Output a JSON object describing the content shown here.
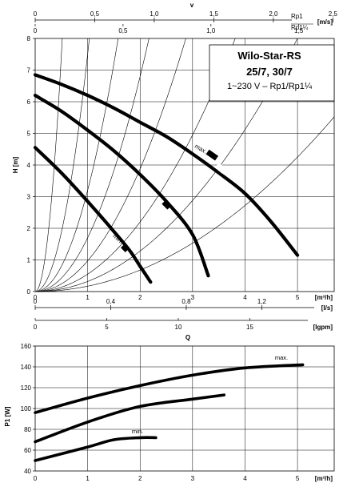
{
  "chart_data": [
    {
      "type": "line",
      "title": "Wilo-Star-RS",
      "subtitle": "25/7, 30/7",
      "note": "1~230 V – Rp1/Rp1¼",
      "ylabel": "H [m]",
      "xlabel": "Q",
      "ylim": [
        0,
        8
      ],
      "xlim": [
        0,
        5.7
      ],
      "grid": true,
      "y_ticks": [
        "0",
        "1",
        "2",
        "3",
        "4",
        "5",
        "6",
        "7",
        "8"
      ],
      "x_axis_m3h": {
        "ticks": [
          "0",
          "1",
          "2",
          "3",
          "4",
          "5"
        ],
        "unit": "[m³/h]"
      },
      "x_axis_ls": {
        "ticks": [
          "0",
          "0,4",
          "0,8",
          "1,2"
        ],
        "values": [
          0,
          0.4,
          0.8,
          1.2
        ],
        "unit": "[l/s]"
      },
      "x_axis_igpm": {
        "ticks": [
          "0",
          "5",
          "10",
          "15"
        ],
        "values": [
          0,
          5,
          10,
          15
        ],
        "unit": "[Igpm]"
      },
      "velocity_label": "v",
      "v_axis_rp1": {
        "ticks": [
          "0",
          "0,5",
          "1,0",
          "1,5",
          "2,0",
          "2,5"
        ],
        "values": [
          0,
          0.5,
          1.0,
          1.5,
          2.0,
          2.5
        ],
        "unit_label": "Rp1",
        "unit": "[m/s]"
      },
      "v_axis_rp114": {
        "ticks": [
          "0",
          "0,5",
          "1,0",
          "1,5"
        ],
        "values": [
          0,
          0.5,
          1.0,
          1.5
        ],
        "unit_label": "Rp1¼"
      },
      "system_curves_k": [
        30,
        7.5,
        3.2,
        1.7,
        0.97,
        0.55,
        0.32,
        0.17
      ],
      "series": [
        {
          "name": "max.",
          "x": [
            0,
            0.5,
            1,
            1.5,
            2,
            2.5,
            3,
            3.5,
            4,
            4.5,
            5
          ],
          "y": [
            6.85,
            6.55,
            6.2,
            5.8,
            5.35,
            4.9,
            4.35,
            3.75,
            3.1,
            2.2,
            1.15
          ]
        },
        {
          "x": [
            0,
            0.5,
            1,
            1.5,
            2,
            2.5,
            3,
            3.3
          ],
          "y": [
            6.2,
            5.7,
            5.1,
            4.45,
            3.7,
            2.85,
            1.8,
            0.5
          ]
        },
        {
          "name": "min.",
          "x": [
            0,
            0.5,
            1,
            1.5,
            1.8,
            2.0,
            2.2
          ],
          "y": [
            4.55,
            3.75,
            2.85,
            1.9,
            1.3,
            0.8,
            0.3
          ]
        }
      ],
      "annotations": [
        "max.",
        "min."
      ]
    },
    {
      "type": "line",
      "ylabel": "P1 [W]",
      "xlabel": "[m³/h]",
      "ylim": [
        40,
        160
      ],
      "xlim": [
        0,
        5.7
      ],
      "grid": true,
      "y_ticks": [
        "40",
        "60",
        "80",
        "100",
        "120",
        "140",
        "160"
      ],
      "x_ticks": [
        "0",
        "1",
        "2",
        "3",
        "4",
        "5"
      ],
      "series": [
        {
          "name": "max.",
          "x": [
            0,
            1,
            2,
            3,
            4,
            5.1
          ],
          "y": [
            96,
            110,
            122,
            132,
            139,
            142
          ]
        },
        {
          "x": [
            0,
            1,
            2,
            3,
            3.6
          ],
          "y": [
            68,
            87,
            102,
            109,
            113
          ]
        },
        {
          "name": "min.",
          "x": [
            0,
            1,
            1.5,
            2.0,
            2.3
          ],
          "y": [
            50,
            63,
            70,
            72,
            72
          ]
        }
      ]
    }
  ]
}
